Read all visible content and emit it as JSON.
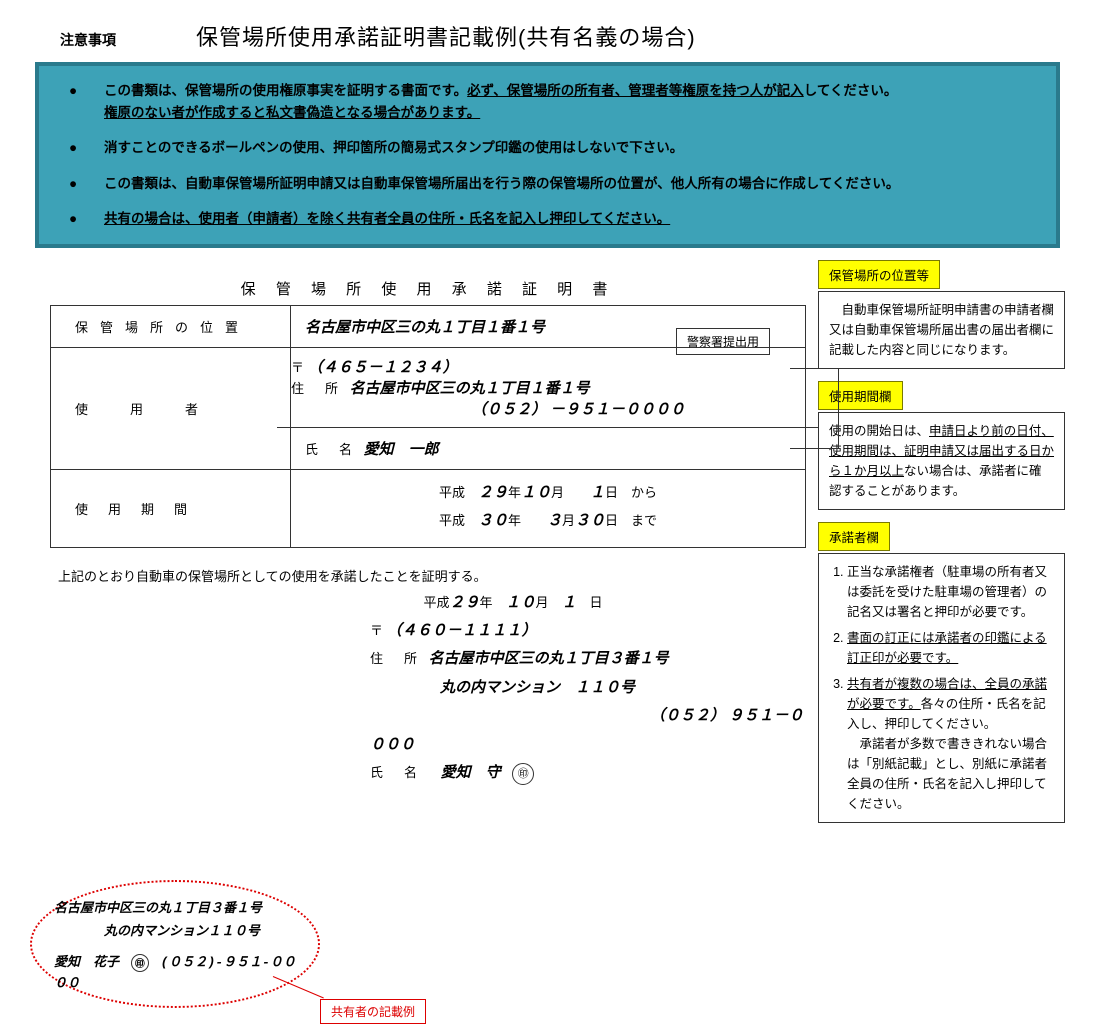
{
  "colors": {
    "notice_bg": "#3da2b7",
    "notice_border": "#2a7a8c",
    "callout_bg": "#ffff00",
    "callout_border": "#7a7a00",
    "red": "#d00000",
    "text": "#000000"
  },
  "header": {
    "note_label": "注意事項",
    "title": "保管場所使用承諾証明書記載例(共有名義の場合)"
  },
  "notices": [
    {
      "pre": "この書類は、保管場所の使用権原事実を証明する書面です。",
      "u": "必ず、保管場所の所有者、管理者等権原を持つ人が記入",
      "post": "してください。",
      "u2": "権原のない者が作成すると私文書偽造となる場合があります。"
    },
    {
      "pre": "消すことのできるボールペンの使用、押印箇所の簡易式スタンプ印鑑の使用はしないで下さい。"
    },
    {
      "pre": "この書類は、自動車保管場所証明申請又は自動車保管場所届出を行う際の保管場所の位置が、他人所有の場合に作成してください。"
    },
    {
      "u": "共有の場合は、使用者（申請者）を除く共有者全員の住所・氏名を記入し押印してください。"
    }
  ],
  "doc_title": "保 管 場 所 使 用 承 諾 証 明 書",
  "submit_stamp": "警察署提出用",
  "form": {
    "location_label": "保管場所の位置",
    "location_value": "名古屋市中区三の丸１丁目１番１号",
    "user_label": "使用者",
    "user": {
      "postal_label": "〒",
      "postal": "（４６５－１２３４）",
      "addr_label": "住　所",
      "addr": "名古屋市中区三の丸１丁目１番１号",
      "tel_label": "",
      "tel_pre": "（０５２）",
      "tel": "－９５１－００００",
      "name_label": "氏　名",
      "name": "愛知　一郎"
    },
    "period_label": "使用期間",
    "period_from": "平成　２９年　１０月　　１日　から",
    "period_to": "平成　３０年　　３月３０日　まで"
  },
  "cert_text": "上記のとおり自動車の保管場所としての使用を承諾したことを証明する。",
  "cert_date": "平成２９年　１０月　１　日",
  "authorizer": {
    "postal_label": "〒",
    "postal": "（４６０－１１１１）",
    "addr_label": "住　所",
    "addr": "名古屋市中区三の丸１丁目３番１号",
    "addr2": "丸の内マンション　１１０号",
    "tel_pre": "（０５２）",
    "tel": "９５１－００００",
    "name_label": "氏　名",
    "name": "愛知　守",
    "seal": "㊞"
  },
  "coowner": {
    "addr": "名古屋市中区三の丸１丁目３番１号",
    "addr2": "丸の内マンション１１０号",
    "name": "愛知　花子",
    "seal": "㊞",
    "tel": "(０５２)-９５１-００００",
    "label": "共有者の記載例"
  },
  "callouts": {
    "c1": {
      "label": "保管場所の位置等",
      "body": "　自動車保管場所証明申請書の申請者欄又は自動車保管場所届出書の届出者欄に記載した内容と同じになります。"
    },
    "c2": {
      "label": "使用期間欄",
      "body_a": "使用の開始日は、",
      "body_u": "申請日より前の日付、使用期間は、証明申請又は届出する日から１か月以上",
      "body_b": "ない場合は、承諾者に確認することがあります。"
    },
    "c3": {
      "label": "承諾者欄",
      "items": [
        {
          "t": "正当な承諾権者（駐車場の所有者又は委託を受けた駐車場の管理者）の記名又は署名と押印が必要です。"
        },
        {
          "u": "書面の訂正には承諾者の印鑑による訂正印が必要です。"
        },
        {
          "u": "共有者が複数の場合は、全員の承諾が必要です。",
          "t": "各々の住所・氏名を記入し、押印してください。",
          "extra": "　承諾者が多数で書ききれない場合は「別紙記載」とし、別紙に承諾者全員の住所・氏名を記入し押印してください。"
        }
      ]
    }
  }
}
